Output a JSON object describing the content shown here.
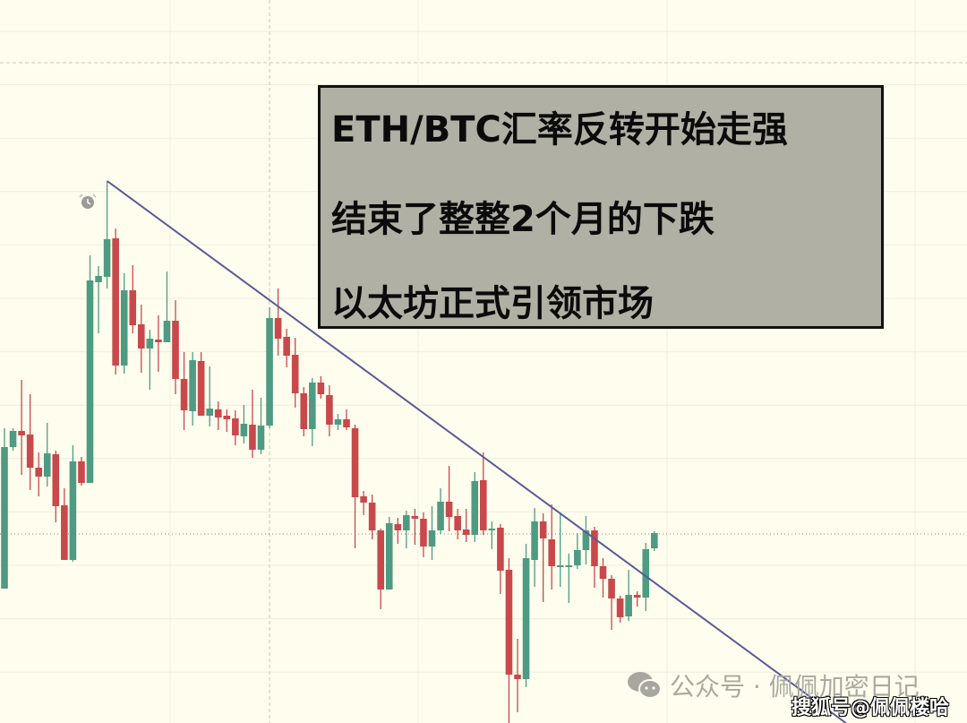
{
  "chart_data": {
    "type": "candlestick",
    "title": "",
    "pair": "ETH/BTC",
    "price_unit": "relative (no axis printed)",
    "ohlc_fields": [
      "open",
      "high",
      "low",
      "close"
    ],
    "candles": [
      [
        150,
        329,
        150,
        308
      ],
      [
        308,
        329,
        304,
        326
      ],
      [
        326,
        383,
        277,
        321
      ],
      [
        322,
        367,
        260,
        285
      ],
      [
        285,
        302,
        253,
        275
      ],
      [
        275,
        335,
        264,
        301
      ],
      [
        300,
        304,
        224,
        242
      ],
      [
        243,
        262,
        182,
        182
      ],
      [
        182,
        310,
        180,
        292
      ],
      [
        292,
        297,
        265,
        268
      ],
      [
        268,
        522,
        268,
        494
      ],
      [
        492,
        510,
        435,
        499
      ],
      [
        498,
        605,
        485,
        540
      ],
      [
        541,
        552,
        389,
        399
      ],
      [
        399,
        502,
        390,
        483
      ],
      [
        483,
        511,
        435,
        444
      ],
      [
        445,
        467,
        391,
        418
      ],
      [
        418,
        439,
        372,
        429
      ],
      [
        428,
        455,
        392,
        425
      ],
      [
        425,
        504,
        425,
        449
      ],
      [
        449,
        472,
        367,
        384
      ],
      [
        384,
        414,
        327,
        349
      ],
      [
        348,
        414,
        332,
        405
      ],
      [
        404,
        414,
        343,
        343
      ],
      [
        343,
        398,
        331,
        351
      ],
      [
        350,
        359,
        327,
        341
      ],
      [
        343,
        350,
        325,
        339
      ],
      [
        340,
        349,
        310,
        321
      ],
      [
        320,
        355,
        312,
        334
      ],
      [
        333,
        372,
        296,
        305
      ],
      [
        305,
        363,
        300,
        332
      ],
      [
        332,
        464,
        329,
        452
      ],
      [
        452,
        485,
        410,
        429
      ],
      [
        431,
        440,
        397,
        410
      ],
      [
        411,
        430,
        352,
        368
      ],
      [
        368,
        375,
        320,
        328
      ],
      [
        328,
        385,
        309,
        380
      ],
      [
        380,
        387,
        362,
        367
      ],
      [
        366,
        377,
        320,
        333
      ],
      [
        333,
        345,
        327,
        339
      ],
      [
        339,
        350,
        327,
        330
      ],
      [
        329,
        333,
        195,
        252
      ],
      [
        253,
        259,
        232,
        246
      ],
      [
        246,
        255,
        205,
        215
      ],
      [
        215,
        217,
        127,
        149
      ],
      [
        149,
        230,
        149,
        223
      ],
      [
        222,
        229,
        200,
        215
      ],
      [
        215,
        237,
        195,
        232
      ],
      [
        231,
        239,
        199,
        228
      ],
      [
        228,
        235,
        185,
        197
      ],
      [
        197,
        242,
        182,
        215
      ],
      [
        215,
        262,
        211,
        247
      ],
      [
        247,
        287,
        214,
        230
      ],
      [
        231,
        239,
        205,
        215
      ],
      [
        216,
        239,
        202,
        210
      ],
      [
        210,
        280,
        202,
        270
      ],
      [
        271,
        302,
        210,
        215
      ],
      [
        215,
        225,
        194,
        217
      ],
      [
        218,
        222,
        144,
        170
      ],
      [
        171,
        184,
        0,
        54
      ],
      [
        54,
        94,
        12,
        49
      ],
      [
        49,
        200,
        40,
        184
      ],
      [
        182,
        240,
        152,
        225
      ],
      [
        225,
        234,
        135,
        206
      ],
      [
        205,
        244,
        149,
        175
      ],
      [
        174,
        235,
        152,
        176
      ],
      [
        174,
        189,
        134,
        176
      ],
      [
        176,
        212,
        172,
        193
      ],
      [
        193,
        231,
        177,
        215
      ],
      [
        215,
        219,
        151,
        175
      ],
      [
        175,
        184,
        140,
        161
      ],
      [
        161,
        165,
        104,
        139
      ],
      [
        139,
        142,
        112,
        118
      ],
      [
        119,
        171,
        114,
        143
      ],
      [
        143,
        147,
        130,
        140
      ],
      [
        140,
        201,
        125,
        194
      ],
      [
        195,
        214,
        192,
        212
      ]
    ],
    "trendline": {
      "from": {
        "candle": 12,
        "price": 605
      },
      "to": {
        "candle": 98.4,
        "price": 0
      },
      "color": "#5a5a9a"
    },
    "reference_price_line": 211,
    "grid": true,
    "colors": {
      "up": "#4f9a82",
      "down": "#c8484b",
      "background": "#fffeee",
      "grid": "#efeedd"
    },
    "markers": [
      {
        "candle": 10,
        "icon": "alarm-clock-icon"
      }
    ]
  },
  "annotation": {
    "line1": "ETH/BTC汇率反转开始走强",
    "line2": "结束了整整2个月的下跌",
    "line3": "以太坊正式引领市场"
  },
  "watermark": {
    "wechat_text": "公众号 · 佩佩加密日记",
    "icon": "wechat-icon",
    "sohu_text": "搜狐号@佩佩楼哈"
  }
}
